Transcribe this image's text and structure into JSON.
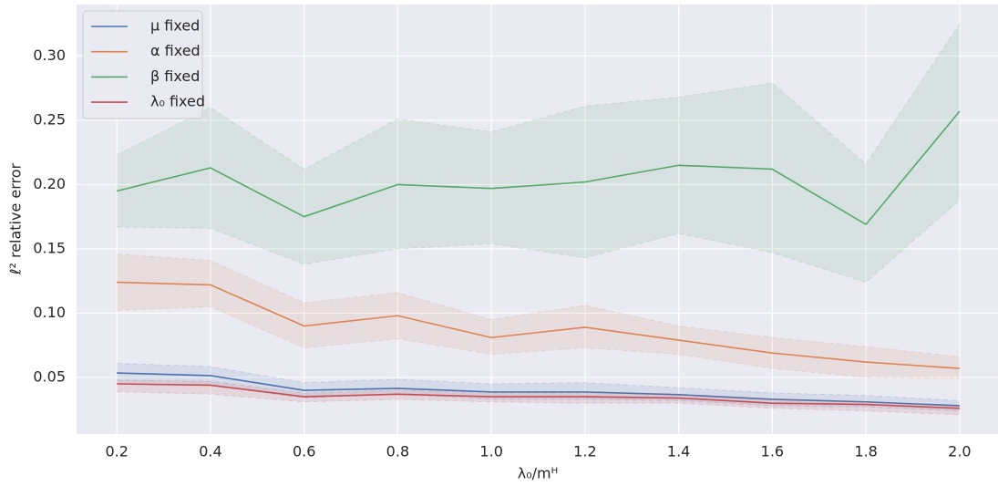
{
  "chart_data": {
    "type": "line",
    "x_label": "λ₀/mᴴ",
    "y_label": "ℓ² relative error",
    "x": [
      0.2,
      0.4,
      0.6,
      0.8,
      1.0,
      1.2,
      1.4,
      1.6,
      1.8,
      2.0
    ],
    "series": [
      {
        "name": "μ fixed",
        "color": "#4c72b0",
        "values": [
          0.0535,
          0.0514,
          0.04,
          0.0415,
          0.0387,
          0.0387,
          0.0366,
          0.033,
          0.031,
          0.028
        ],
        "upper": [
          0.061,
          0.0585,
          0.046,
          0.0486,
          0.045,
          0.046,
          0.042,
          0.038,
          0.036,
          0.032
        ],
        "lower": [
          0.045,
          0.044,
          0.034,
          0.037,
          0.033,
          0.033,
          0.032,
          0.028,
          0.027,
          0.024
        ]
      },
      {
        "name": "α fixed",
        "color": "#dd8452",
        "values": [
          0.124,
          0.122,
          0.09,
          0.098,
          0.081,
          0.089,
          0.079,
          0.069,
          0.062,
          0.057
        ],
        "upper": [
          0.146,
          0.141,
          0.108,
          0.116,
          0.095,
          0.106,
          0.09,
          0.081,
          0.074,
          0.066
        ],
        "lower": [
          0.102,
          0.105,
          0.073,
          0.08,
          0.068,
          0.073,
          0.068,
          0.057,
          0.05,
          0.049
        ]
      },
      {
        "name": "β fixed",
        "color": "#55a868",
        "values": [
          0.195,
          0.213,
          0.175,
          0.2,
          0.197,
          0.202,
          0.215,
          0.212,
          0.169,
          0.257
        ],
        "upper": [
          0.223,
          0.26,
          0.212,
          0.251,
          0.241,
          0.261,
          0.268,
          0.279,
          0.216,
          0.325
        ],
        "lower": [
          0.167,
          0.166,
          0.138,
          0.15,
          0.154,
          0.143,
          0.162,
          0.147,
          0.124,
          0.188
        ]
      },
      {
        "name": "λ₀ fixed",
        "color": "#c44e52",
        "values": [
          0.045,
          0.044,
          0.035,
          0.037,
          0.035,
          0.035,
          0.034,
          0.03,
          0.029,
          0.026
        ],
        "upper": [
          0.048,
          0.047,
          0.038,
          0.04,
          0.038,
          0.038,
          0.037,
          0.033,
          0.031,
          0.028
        ],
        "lower": [
          0.039,
          0.037,
          0.031,
          0.033,
          0.031,
          0.03,
          0.03,
          0.026,
          0.024,
          0.021
        ]
      }
    ],
    "xlim": [
      0.114,
      2.082
    ],
    "ylim": [
      0.006,
      0.34
    ],
    "xticks": [
      0.2,
      0.4,
      0.6,
      0.8,
      {
        "value": 1.0,
        "label": "1.0"
      },
      1.2,
      1.4,
      1.6,
      1.8,
      {
        "value": 2.0,
        "label": "2.0"
      }
    ],
    "yticks": [
      0.05,
      {
        "value": 0.1,
        "label": "0.10"
      },
      0.15,
      {
        "value": 0.2,
        "label": "0.20"
      },
      0.25,
      {
        "value": 0.3,
        "label": "0.30"
      }
    ],
    "grid": true,
    "legend": "upper left"
  }
}
